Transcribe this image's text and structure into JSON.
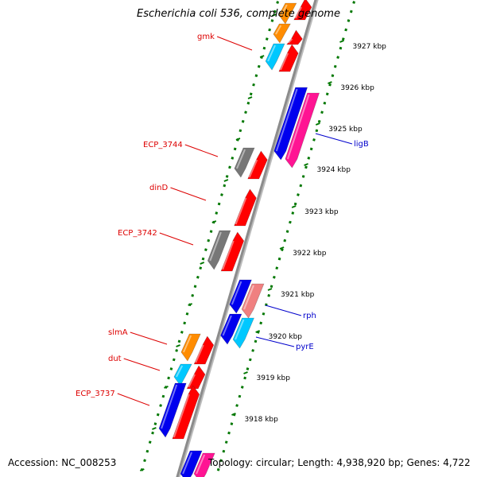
{
  "title": "Escherichia coli 536, complete genome",
  "footer": {
    "accession": "Accession: NC_008253",
    "summary": "Topology: circular; Length: 4,938,920 bp; Genes: 4,722"
  },
  "scale_unit": "kbp",
  "ticks": [
    {
      "kbp": 3927,
      "label": "3927 kbp"
    },
    {
      "kbp": 3926,
      "label": "3926 kbp"
    },
    {
      "kbp": 3925,
      "label": "3925 kbp"
    },
    {
      "kbp": 3924,
      "label": "3924 kbp"
    },
    {
      "kbp": 3923,
      "label": "3923 kbp"
    },
    {
      "kbp": 3922,
      "label": "3922 kbp"
    },
    {
      "kbp": 3921,
      "label": "3921 kbp"
    },
    {
      "kbp": 3920,
      "label": "3920 kbp"
    },
    {
      "kbp": 3919,
      "label": "3919 kbp"
    },
    {
      "kbp": 3918,
      "label": "3918 kbp"
    }
  ],
  "gene_labels": [
    {
      "name": "gmk",
      "strand": "minus",
      "color": "#dd0000"
    },
    {
      "name": "ECP_3744",
      "strand": "minus",
      "color": "#dd0000"
    },
    {
      "name": "dinD",
      "strand": "minus",
      "color": "#dd0000"
    },
    {
      "name": "ECP_3742",
      "strand": "minus",
      "color": "#dd0000"
    },
    {
      "name": "slmA",
      "strand": "minus",
      "color": "#dd0000"
    },
    {
      "name": "dut",
      "strand": "minus",
      "color": "#dd0000"
    },
    {
      "name": "ECP_3737",
      "strand": "minus",
      "color": "#dd0000"
    },
    {
      "name": "ligB",
      "strand": "plus",
      "color": "#0000cc"
    },
    {
      "name": "rph",
      "strand": "plus",
      "color": "#0000cc"
    },
    {
      "name": "pyrE",
      "strand": "plus",
      "color": "#0000cc"
    }
  ],
  "colors": {
    "backbone": "#8c8c8c",
    "gc_skew": "#007700",
    "cds_reverse": "#ff0000",
    "cds_forward": "#0000ee",
    "rna": "#ff1493",
    "hypothetical": "#777777",
    "cog_orange": "#ff8c00",
    "cog_cyan": "#00c8ff",
    "cog_pink": "#f08080"
  }
}
